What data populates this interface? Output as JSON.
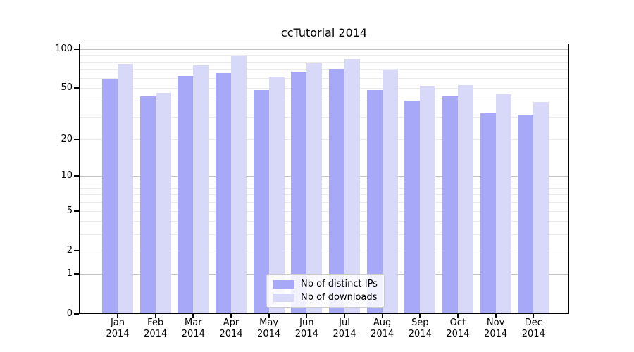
{
  "chart_data": {
    "type": "bar",
    "title": "ccTutorial 2014",
    "categories": [
      "Jan",
      "Feb",
      "Mar",
      "Apr",
      "May",
      "Jun",
      "Jul",
      "Aug",
      "Sep",
      "Oct",
      "Nov",
      "Dec"
    ],
    "x_year_label": "2014",
    "series": [
      {
        "name": "Nb of distinct IPs",
        "color": "#a8a8f8",
        "values": [
          59,
          43,
          62,
          65,
          48,
          67,
          70,
          48,
          40,
          43,
          32,
          31
        ]
      },
      {
        "name": "Nb of downloads",
        "color": "#d8d8f8",
        "values": [
          77,
          46,
          75,
          89,
          61,
          78,
          84,
          69,
          52,
          53,
          45,
          39
        ]
      }
    ],
    "yscale": "log10(value+1)",
    "ylim": [
      0,
      109
    ],
    "yticks": [
      0,
      1,
      2,
      5,
      10,
      20,
      50,
      100
    ],
    "major_gridlines": [
      1,
      10,
      100
    ],
    "minor_gridlines": [
      2,
      3,
      4,
      5,
      6,
      7,
      8,
      9,
      20,
      30,
      40,
      50,
      60,
      70,
      80,
      90
    ],
    "grid": true,
    "legend_position": "lower center",
    "colors": {
      "major_grid": "#c3c3c3",
      "minor_grid": "#eaeaea",
      "axis": "#000000",
      "background": "#ffffff"
    }
  }
}
